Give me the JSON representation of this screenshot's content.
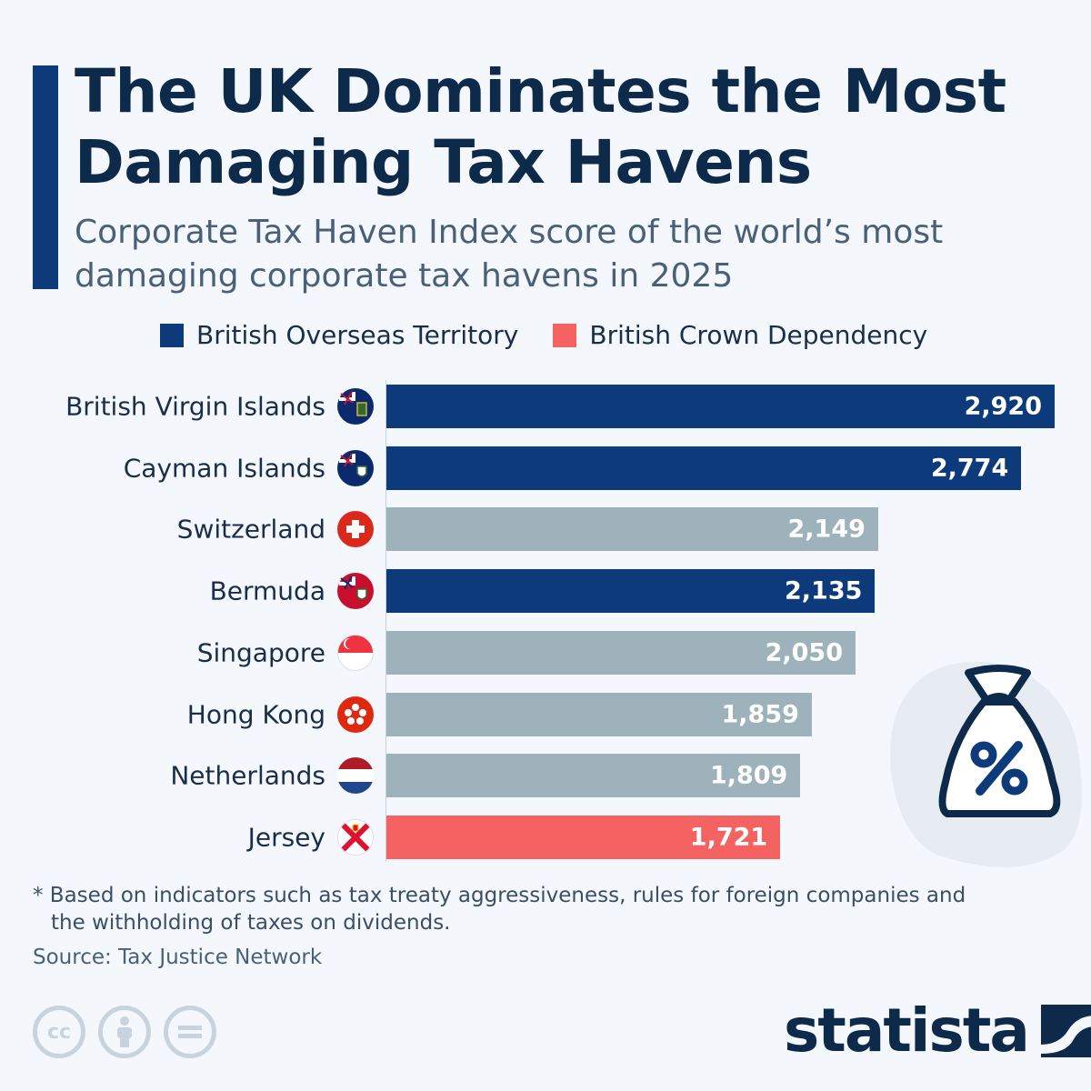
{
  "title": "The UK Dominates the Most Damaging Tax Havens",
  "subtitle": "Corporate Tax Haven Index score of the world’s most damaging corporate tax havens in 2025",
  "legend": [
    {
      "label": "British Overseas Territory",
      "color": "#0d3a7a"
    },
    {
      "label": "British Crown Dependency",
      "color": "#f56262"
    }
  ],
  "chart_data": {
    "type": "bar",
    "orientation": "horizontal",
    "title": "The UK Dominates the Most Damaging Tax Havens",
    "xlim": [
      0,
      2920
    ],
    "grid": false,
    "categories": [
      "British Virgin Islands",
      "Cayman Islands",
      "Switzerland",
      "Bermuda",
      "Singapore",
      "Hong Kong",
      "Netherlands",
      "Jersey"
    ],
    "values": [
      2920,
      2774,
      2149,
      2135,
      2050,
      1859,
      1809,
      1721
    ],
    "value_labels": [
      "2,920",
      "2,774",
      "2,149",
      "2,135",
      "2,050",
      "1,859",
      "1,809",
      "1,721"
    ],
    "groups": [
      "British Overseas Territory",
      "British Overseas Territory",
      "other",
      "British Overseas Territory",
      "other",
      "other",
      "other",
      "British Crown Dependency"
    ],
    "flags": [
      "ensign-blue-bvi",
      "ensign-blue-cayman",
      "switzerland",
      "ensign-red-bermuda",
      "singapore",
      "hong-kong",
      "netherlands",
      "jersey"
    ],
    "colors": {
      "British Overseas Territory": "#0d3a7a",
      "British Crown Dependency": "#f56262",
      "other": "#9eb2bb"
    }
  },
  "footnote": "* Based on indicators such as tax treaty aggressiveness, rules for foreign companies and the withholding of taxes on dividends.",
  "source": "Source: Tax Justice Network",
  "license_icons": [
    "cc",
    "by",
    "nd"
  ],
  "brand": "statista",
  "illustration": "money-bag-percent-icon"
}
